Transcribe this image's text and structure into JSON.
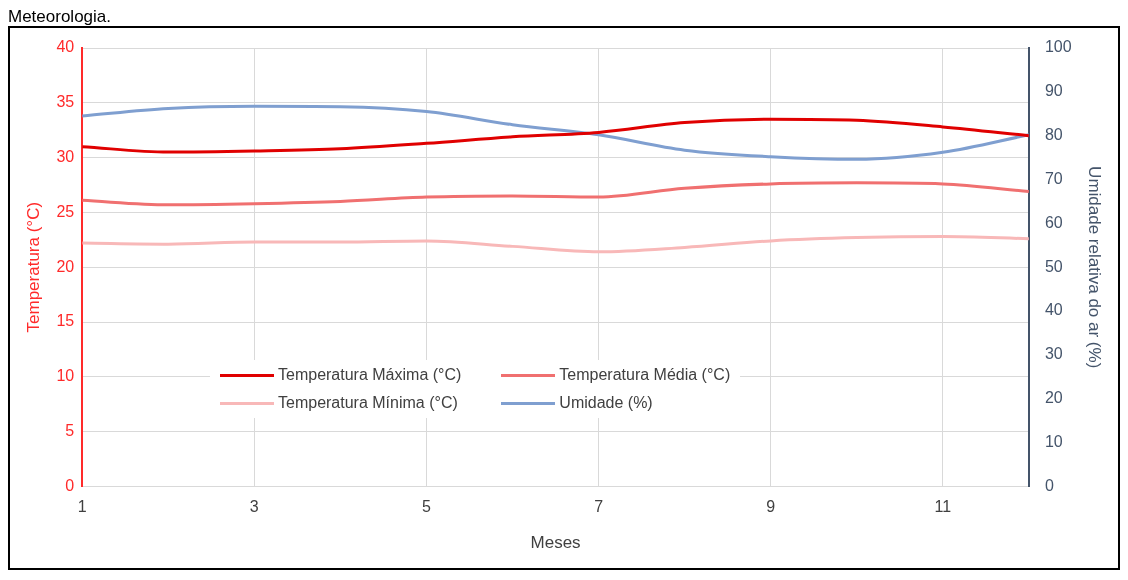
{
  "chart_data": {
    "type": "line",
    "xlabel": "Meses",
    "ylabel": "Temperatura (°C)",
    "y2label": "Umidade relativa do ar (%)",
    "annotations": [
      "Meteorologia."
    ],
    "x": [
      1,
      2,
      3,
      4,
      5,
      6,
      7,
      8,
      9,
      10,
      11,
      12
    ],
    "xlim": [
      1,
      12
    ],
    "xticks": [
      1,
      3,
      5,
      7,
      9,
      11
    ],
    "ylim": [
      0,
      40
    ],
    "yticks": [
      0,
      5,
      10,
      15,
      20,
      25,
      30,
      35,
      40
    ],
    "y2lim": [
      0,
      100
    ],
    "y2ticks": [
      0,
      10,
      20,
      30,
      40,
      50,
      60,
      70,
      80,
      90,
      100
    ],
    "grid": true,
    "legend": "bottom",
    "marker": "none",
    "line_style": "solid",
    "series": [
      {
        "name": "Temperatura Máxima (°C)",
        "color": "#e00000",
        "values": [
          31,
          30.5,
          30.6,
          30.8,
          31.3,
          31.9,
          32.3,
          33.2,
          33.5,
          33.4,
          32.8,
          32.0
        ]
      },
      {
        "name": "Temperatura Média (°C)",
        "color": "#f07070",
        "values": [
          26.1,
          25.7,
          25.8,
          26.0,
          26.4,
          26.5,
          26.4,
          27.2,
          27.6,
          27.7,
          27.6,
          26.9
        ]
      },
      {
        "name": "Temperatura Mínima (°C)",
        "color": "#f8b8b8",
        "values": [
          22.2,
          22.1,
          22.3,
          22.3,
          22.4,
          21.9,
          21.4,
          21.8,
          22.4,
          22.7,
          22.8,
          22.6
        ]
      },
      {
        "name": "Umidade (%)",
        "color": "#7f9fd0",
        "axis": "y2",
        "values": [
          84.5,
          86.2,
          86.7,
          86.6,
          85.5,
          82.5,
          80.2,
          76.7,
          75.2,
          74.6,
          76.2,
          80.2
        ]
      }
    ]
  }
}
